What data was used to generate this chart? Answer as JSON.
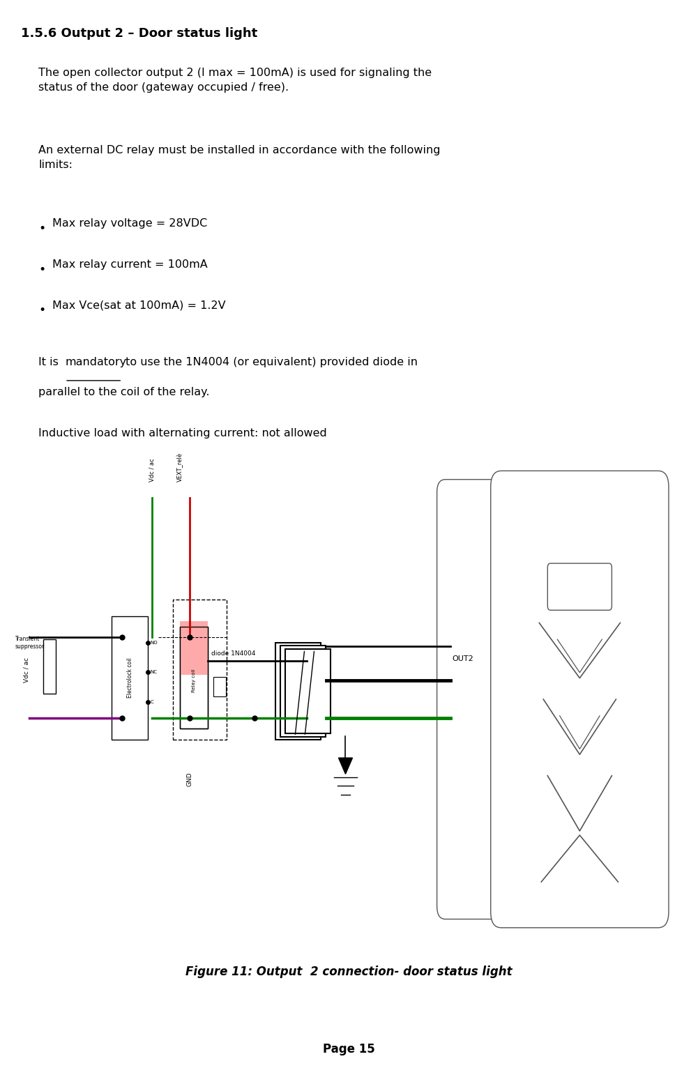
{
  "bg_color": "#ffffff",
  "title": "1.5.6 Output 2 – Door status light",
  "title_fontsize": 13,
  "title_bold": true,
  "body_fontsize": 11.5,
  "bullets": [
    "Max relay voltage = 28VDC",
    "Max relay current = 100mA",
    "Max Vce(sat at 100mA) = 1.2V"
  ],
  "figure_caption": "Figure 11: Output  2 connection- door status light",
  "page_label": "Page 15",
  "caption_fontsize": 12,
  "page_fontsize": 12
}
